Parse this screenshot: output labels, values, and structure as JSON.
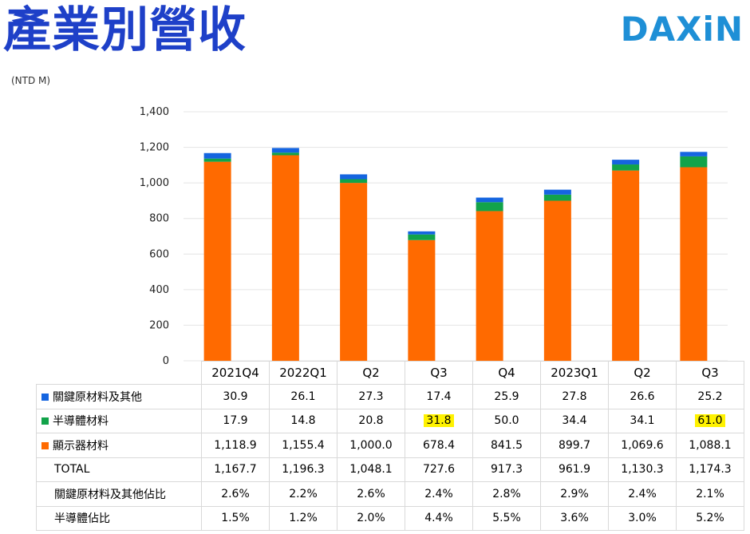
{
  "page": {
    "title": "產業別營收",
    "unit": "(NTD M)",
    "logo": "DAXiN"
  },
  "colors": {
    "title": "#1e40c8",
    "logo": "#1e8fd6",
    "key_materials": "#1565e0",
    "semiconductor": "#12a34a",
    "display": "#ff6a00",
    "highlight": "#fff200"
  },
  "chart_data": {
    "type": "bar",
    "stacked": true,
    "categories": [
      "2021Q4",
      "2022Q1",
      "Q2",
      "Q3",
      "Q4",
      "2023Q1",
      "Q2",
      "Q3"
    ],
    "ylim": [
      0,
      1400
    ],
    "yticks": [
      "0",
      "200",
      "400",
      "600",
      "800",
      "1,000",
      "1,200",
      "1,400"
    ],
    "ytick_values": [
      0,
      200,
      400,
      600,
      800,
      1000,
      1200,
      1400
    ],
    "series": [
      {
        "name": "顯示器材料",
        "color_key": "display",
        "values": [
          1118.9,
          1155.4,
          1000.0,
          678.4,
          841.5,
          899.7,
          1069.6,
          1088.1
        ],
        "labels": [
          "1,118.9",
          "1,155.4",
          "1,000.0",
          "678.4",
          "841.5",
          "899.7",
          "1,069.6",
          "1,088.1"
        ]
      },
      {
        "name": "半導體材料",
        "color_key": "semiconductor",
        "values": [
          17.9,
          14.8,
          20.8,
          31.8,
          50.0,
          34.4,
          34.1,
          61.0
        ],
        "labels": [
          "17.9",
          "14.8",
          "20.8",
          "31.8",
          "50.0",
          "34.4",
          "34.1",
          "61.0"
        ]
      },
      {
        "name": "關鍵原材料及其他",
        "color_key": "key_materials",
        "values": [
          30.9,
          26.1,
          27.3,
          17.4,
          25.9,
          27.8,
          26.6,
          25.2
        ],
        "labels": [
          "30.9",
          "26.1",
          "27.3",
          "17.4",
          "25.9",
          "27.8",
          "26.6",
          "25.2"
        ]
      }
    ],
    "table": {
      "rows": [
        {
          "label": "關鍵原材料及其他",
          "key": "key_materials",
          "values": [
            "30.9",
            "26.1",
            "27.3",
            "17.4",
            "25.9",
            "27.8",
            "26.6",
            "25.2"
          ],
          "highlight": []
        },
        {
          "label": "半導體材料",
          "key": "semiconductor",
          "values": [
            "17.9",
            "14.8",
            "20.8",
            "31.8",
            "50.0",
            "34.4",
            "34.1",
            "61.0"
          ],
          "highlight": [
            3,
            7
          ]
        },
        {
          "label": "顯示器材料",
          "key": "display",
          "values": [
            "1,118.9",
            "1,155.4",
            "1,000.0",
            "678.4",
            "841.5",
            "899.7",
            "1,069.6",
            "1,088.1"
          ],
          "highlight": []
        },
        {
          "label": "TOTAL",
          "key": null,
          "values": [
            "1,167.7",
            "1,196.3",
            "1,048.1",
            "727.6",
            "917.3",
            "961.9",
            "1,130.3",
            "1,174.3"
          ],
          "highlight": []
        },
        {
          "label": "關鍵原材料及其他佔比",
          "key": null,
          "values": [
            "2.6%",
            "2.2%",
            "2.6%",
            "2.4%",
            "2.8%",
            "2.9%",
            "2.4%",
            "2.1%"
          ],
          "highlight": []
        },
        {
          "label": "半導體佔比",
          "key": null,
          "values": [
            "1.5%",
            "1.2%",
            "2.0%",
            "4.4%",
            "5.5%",
            "3.6%",
            "3.0%",
            "5.2%"
          ],
          "highlight": []
        }
      ]
    }
  }
}
